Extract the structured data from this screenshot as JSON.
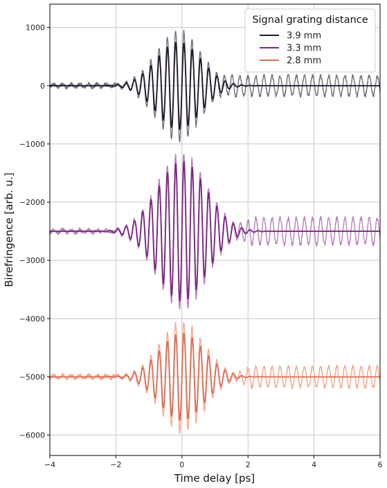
{
  "chart_data": {
    "type": "line",
    "title": "",
    "xlabel": "Time delay [ps]",
    "ylabel": "Birefringence [arb. u.]",
    "xlim": [
      -4,
      6
    ],
    "ylim": [
      -6350,
      1400
    ],
    "xticks": [
      -4,
      -2,
      0,
      2,
      4,
      6
    ],
    "xtick_labels": [
      "−4",
      "−2",
      "0",
      "2",
      "4",
      "6"
    ],
    "yticks": [
      1000,
      0,
      -1000,
      -2000,
      -3000,
      -4000,
      -5000,
      -6000
    ],
    "ytick_labels": [
      "1000",
      "0",
      "−1000",
      "−2000",
      "−3000",
      "−4000",
      "−5000",
      "−6000"
    ],
    "grid": true,
    "legend": {
      "title": "Signal grating distance",
      "position": "top-right"
    },
    "series": [
      {
        "name": "3.9 mm",
        "color": "#1c1c30",
        "raw_color": "#6f6f78",
        "baseline": 0,
        "envelope_center_ps": -0.1,
        "envelope_width_ps": 0.95,
        "fit_amplitude": 750,
        "raw_amplitude": 950,
        "oscillation_period_ps": 0.25,
        "raw_tail_amplitude": 170,
        "raw_tail_start_ps": 1.0
      },
      {
        "name": "3.3 mm",
        "color": "#7a2a80",
        "raw_color": "#b880bd",
        "baseline": -2500,
        "envelope_center_ps": 0,
        "envelope_width_ps": 1.05,
        "fit_amplitude": 1200,
        "raw_amplitude": 1350,
        "oscillation_period_ps": 0.25,
        "raw_tail_amplitude": 230,
        "raw_tail_start_ps": 1.5
      },
      {
        "name": "2.8 mm",
        "color": "#dd6f58",
        "raw_color": "#f3a88e",
        "baseline": -5000,
        "envelope_center_ps": 0,
        "envelope_width_ps": 0.95,
        "fit_amplitude": 750,
        "raw_amplitude": 950,
        "oscillation_period_ps": 0.25,
        "raw_tail_amplitude": 180,
        "raw_tail_start_ps": 1.5
      }
    ]
  }
}
